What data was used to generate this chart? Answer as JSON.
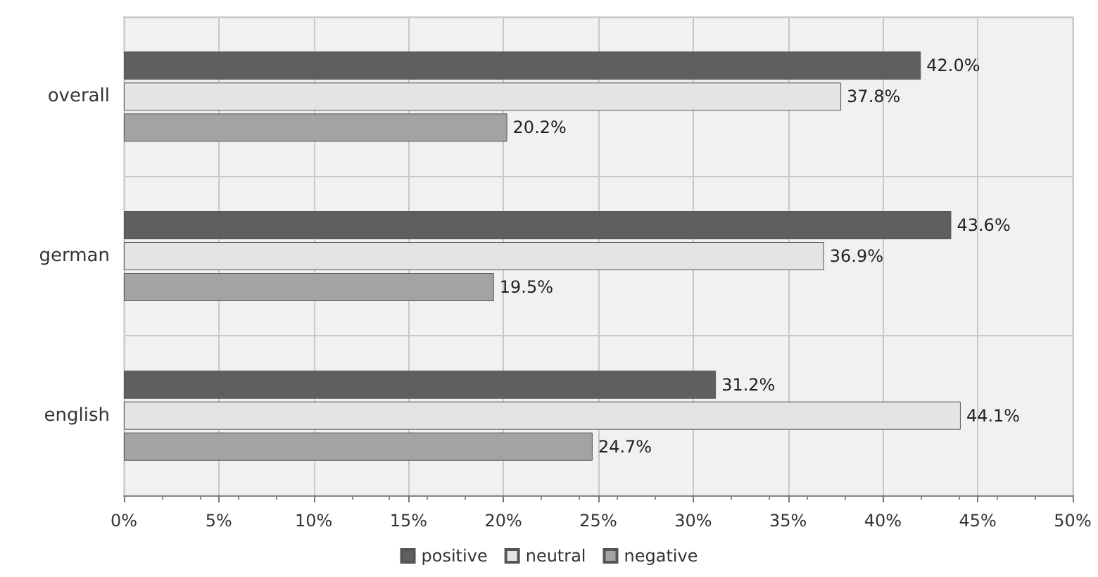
{
  "chart_data": {
    "type": "bar",
    "orientation": "horizontal",
    "categories": [
      "overall",
      "german",
      "english"
    ],
    "series": [
      {
        "name": "positive",
        "color": "#5f5f5f",
        "values": [
          42.0,
          43.6,
          31.2
        ],
        "value_labels": [
          "42.0%",
          "43.6%",
          "31.2%"
        ]
      },
      {
        "name": "neutral",
        "color": "#e4e4e4",
        "values": [
          37.8,
          36.9,
          44.1
        ],
        "value_labels": [
          "37.8%",
          "36.9%",
          "44.1%"
        ]
      },
      {
        "name": "negative",
        "color": "#a3a3a3",
        "values": [
          20.2,
          19.5,
          24.7
        ],
        "value_labels": [
          "20.2%",
          "19.5%",
          "24.7%"
        ]
      }
    ],
    "xlim": [
      0,
      50
    ],
    "xticks": [
      {
        "value": 0,
        "label": "0%"
      },
      {
        "value": 5,
        "label": "5%"
      },
      {
        "value": 10,
        "label": "10%"
      },
      {
        "value": 15,
        "label": "15%"
      },
      {
        "value": 20,
        "label": "20%"
      },
      {
        "value": 25,
        "label": "25%"
      },
      {
        "value": 30,
        "label": "30%"
      },
      {
        "value": 35,
        "label": "35%"
      },
      {
        "value": 40,
        "label": "40%"
      },
      {
        "value": 45,
        "label": "45%"
      },
      {
        "value": 50,
        "label": "50%"
      }
    ],
    "grid": true,
    "legend": "bottom"
  }
}
